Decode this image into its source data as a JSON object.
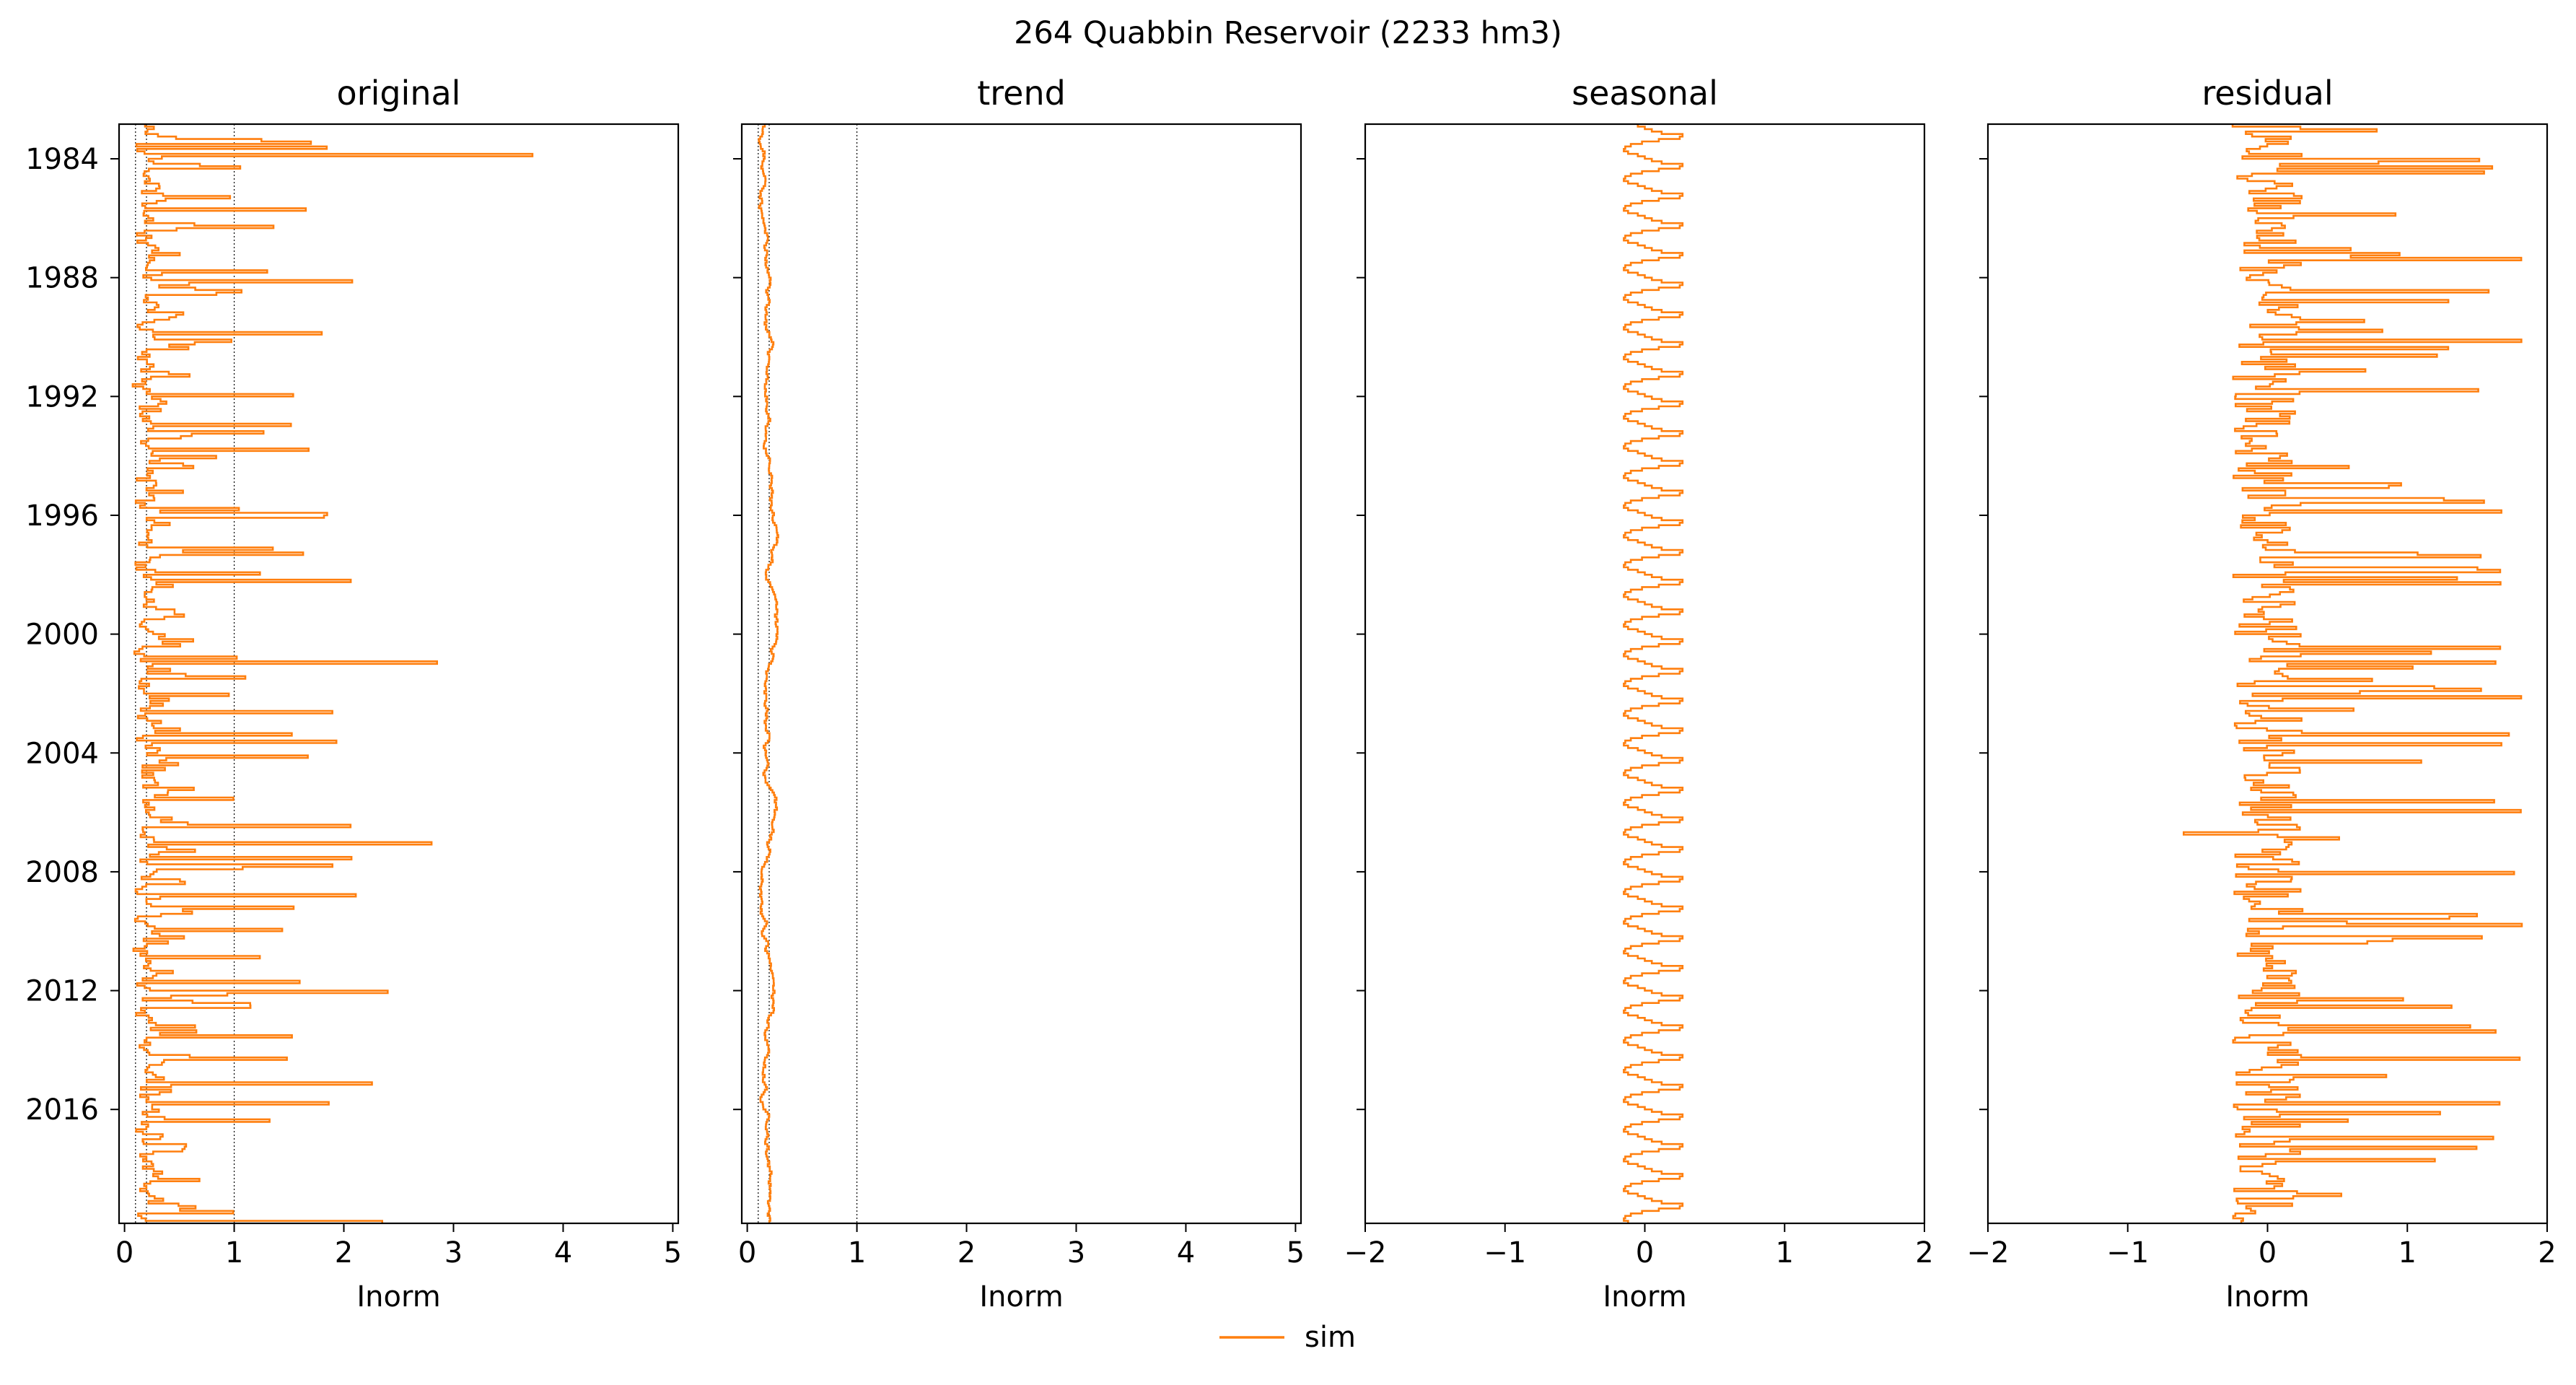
{
  "figure": {
    "title": "264  Quabbin Reservoir (2233 hm3)",
    "legend": {
      "label": "sim",
      "color": "#ff7f0e",
      "placement": "bottom-center"
    }
  },
  "chart_data": [
    {
      "type": "line",
      "title": "original",
      "xlabel": "Inorm",
      "xlim": [
        -0.05,
        5.05
      ],
      "xticks": [
        0,
        1,
        2,
        3,
        4,
        5
      ],
      "xtick_labels": [
        "0",
        "1",
        "2",
        "3",
        "4",
        "5"
      ],
      "ylim": [
        "1982-11",
        "2019-11"
      ],
      "yticks": [
        "1984",
        "1988",
        "1992",
        "1996",
        "2000",
        "2004",
        "2008",
        "2012",
        "2016"
      ],
      "ref_lines": [
        0.1,
        0.2,
        1
      ],
      "series": [
        {
          "name": "sim",
          "color": "#ff7f0e",
          "profile": "inflow-spikes",
          "base": 0.12,
          "max": 3.72,
          "seed": 11
        }
      ]
    },
    {
      "type": "line",
      "title": "trend",
      "xlabel": "Inorm",
      "xlim": [
        -0.05,
        5.05
      ],
      "xticks": [
        0,
        1,
        2,
        3,
        4,
        5
      ],
      "xtick_labels": [
        "0",
        "1",
        "2",
        "3",
        "4",
        "5"
      ],
      "ylim": [
        "1982-11",
        "2019-11"
      ],
      "yticks": [],
      "ref_lines": [
        0.1,
        0.2,
        1
      ],
      "series": [
        {
          "name": "sim",
          "color": "#ff7f0e",
          "profile": "smooth-trend",
          "base": 0.18,
          "range": [
            0.05,
            0.32
          ],
          "seed": 23
        }
      ]
    },
    {
      "type": "line",
      "title": "seasonal",
      "xlabel": "Inorm",
      "xlim": [
        -2,
        2
      ],
      "xticks": [
        -2,
        -1,
        0,
        1,
        2
      ],
      "xtick_labels": [
        "−2",
        "−1",
        "0",
        "1",
        "2"
      ],
      "ylim": [
        "1982-11",
        "2019-11"
      ],
      "yticks": [],
      "ref_lines": [],
      "series": [
        {
          "name": "sim",
          "color": "#ff7f0e",
          "profile": "annual-cycle",
          "range": [
            -0.15,
            0.27
          ]
        }
      ]
    },
    {
      "type": "line",
      "title": "residual",
      "xlabel": "Inorm",
      "xlim": [
        -2,
        2
      ],
      "xticks": [
        -2,
        -1,
        0,
        1,
        2
      ],
      "xtick_labels": [
        "−2",
        "−1",
        "0",
        "1",
        "2"
      ],
      "ylim": [
        "1982-11",
        "2019-11"
      ],
      "yticks": [],
      "ref_lines": [],
      "series": [
        {
          "name": "sim",
          "color": "#ff7f0e",
          "profile": "noise-spikes",
          "range": [
            -0.6,
            2.0
          ],
          "seed": 37
        }
      ]
    }
  ]
}
